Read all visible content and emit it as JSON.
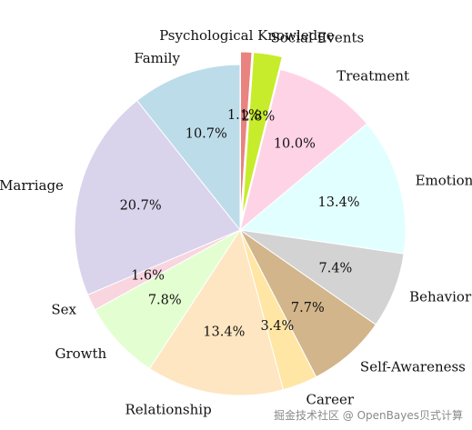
{
  "chart_data": {
    "type": "pie",
    "title": "",
    "start_angle_deg": 90,
    "direction": "clockwise",
    "slices": [
      {
        "label": "Psychological Knowledge",
        "value": 1.1,
        "pct": "1.1%",
        "color": "#e9837f",
        "explode": true
      },
      {
        "label": "Social Events",
        "value": 2.8,
        "pct": "2.8%",
        "color": "#c7ec2b",
        "explode": true
      },
      {
        "label": "Treatment",
        "value": 10.0,
        "pct": "10.0%",
        "color": "#ffd3e6",
        "explode": false
      },
      {
        "label": "Emotion",
        "value": 13.4,
        "pct": "13.4%",
        "color": "#e2ffff",
        "explode": false
      },
      {
        "label": "Behavior",
        "value": 7.4,
        "pct": "7.4%",
        "color": "#d3d3d3",
        "explode": false
      },
      {
        "label": "Self-Awareness",
        "value": 7.7,
        "pct": "7.7%",
        "color": "#d2b58a",
        "explode": false
      },
      {
        "label": "Career",
        "value": 3.4,
        "pct": "3.4%",
        "color": "#ffe6a5",
        "explode": false
      },
      {
        "label": "Relationship",
        "value": 13.4,
        "pct": "13.4%",
        "color": "#fde6c1",
        "explode": false
      },
      {
        "label": "Growth",
        "value": 7.8,
        "pct": "7.8%",
        "color": "#e3ffd1",
        "explode": false
      },
      {
        "label": "Sex",
        "value": 1.6,
        "pct": "1.6%",
        "color": "#f8d5df",
        "explode": false
      },
      {
        "label": "Marriage",
        "value": 20.7,
        "pct": "20.7%",
        "color": "#d9d3ec",
        "explode": false
      },
      {
        "label": "Family",
        "value": 10.7,
        "pct": "10.7%",
        "color": "#bddce9",
        "explode": false
      }
    ]
  },
  "watermark": "掘金技术社区 @ OpenBayes贝式计算"
}
